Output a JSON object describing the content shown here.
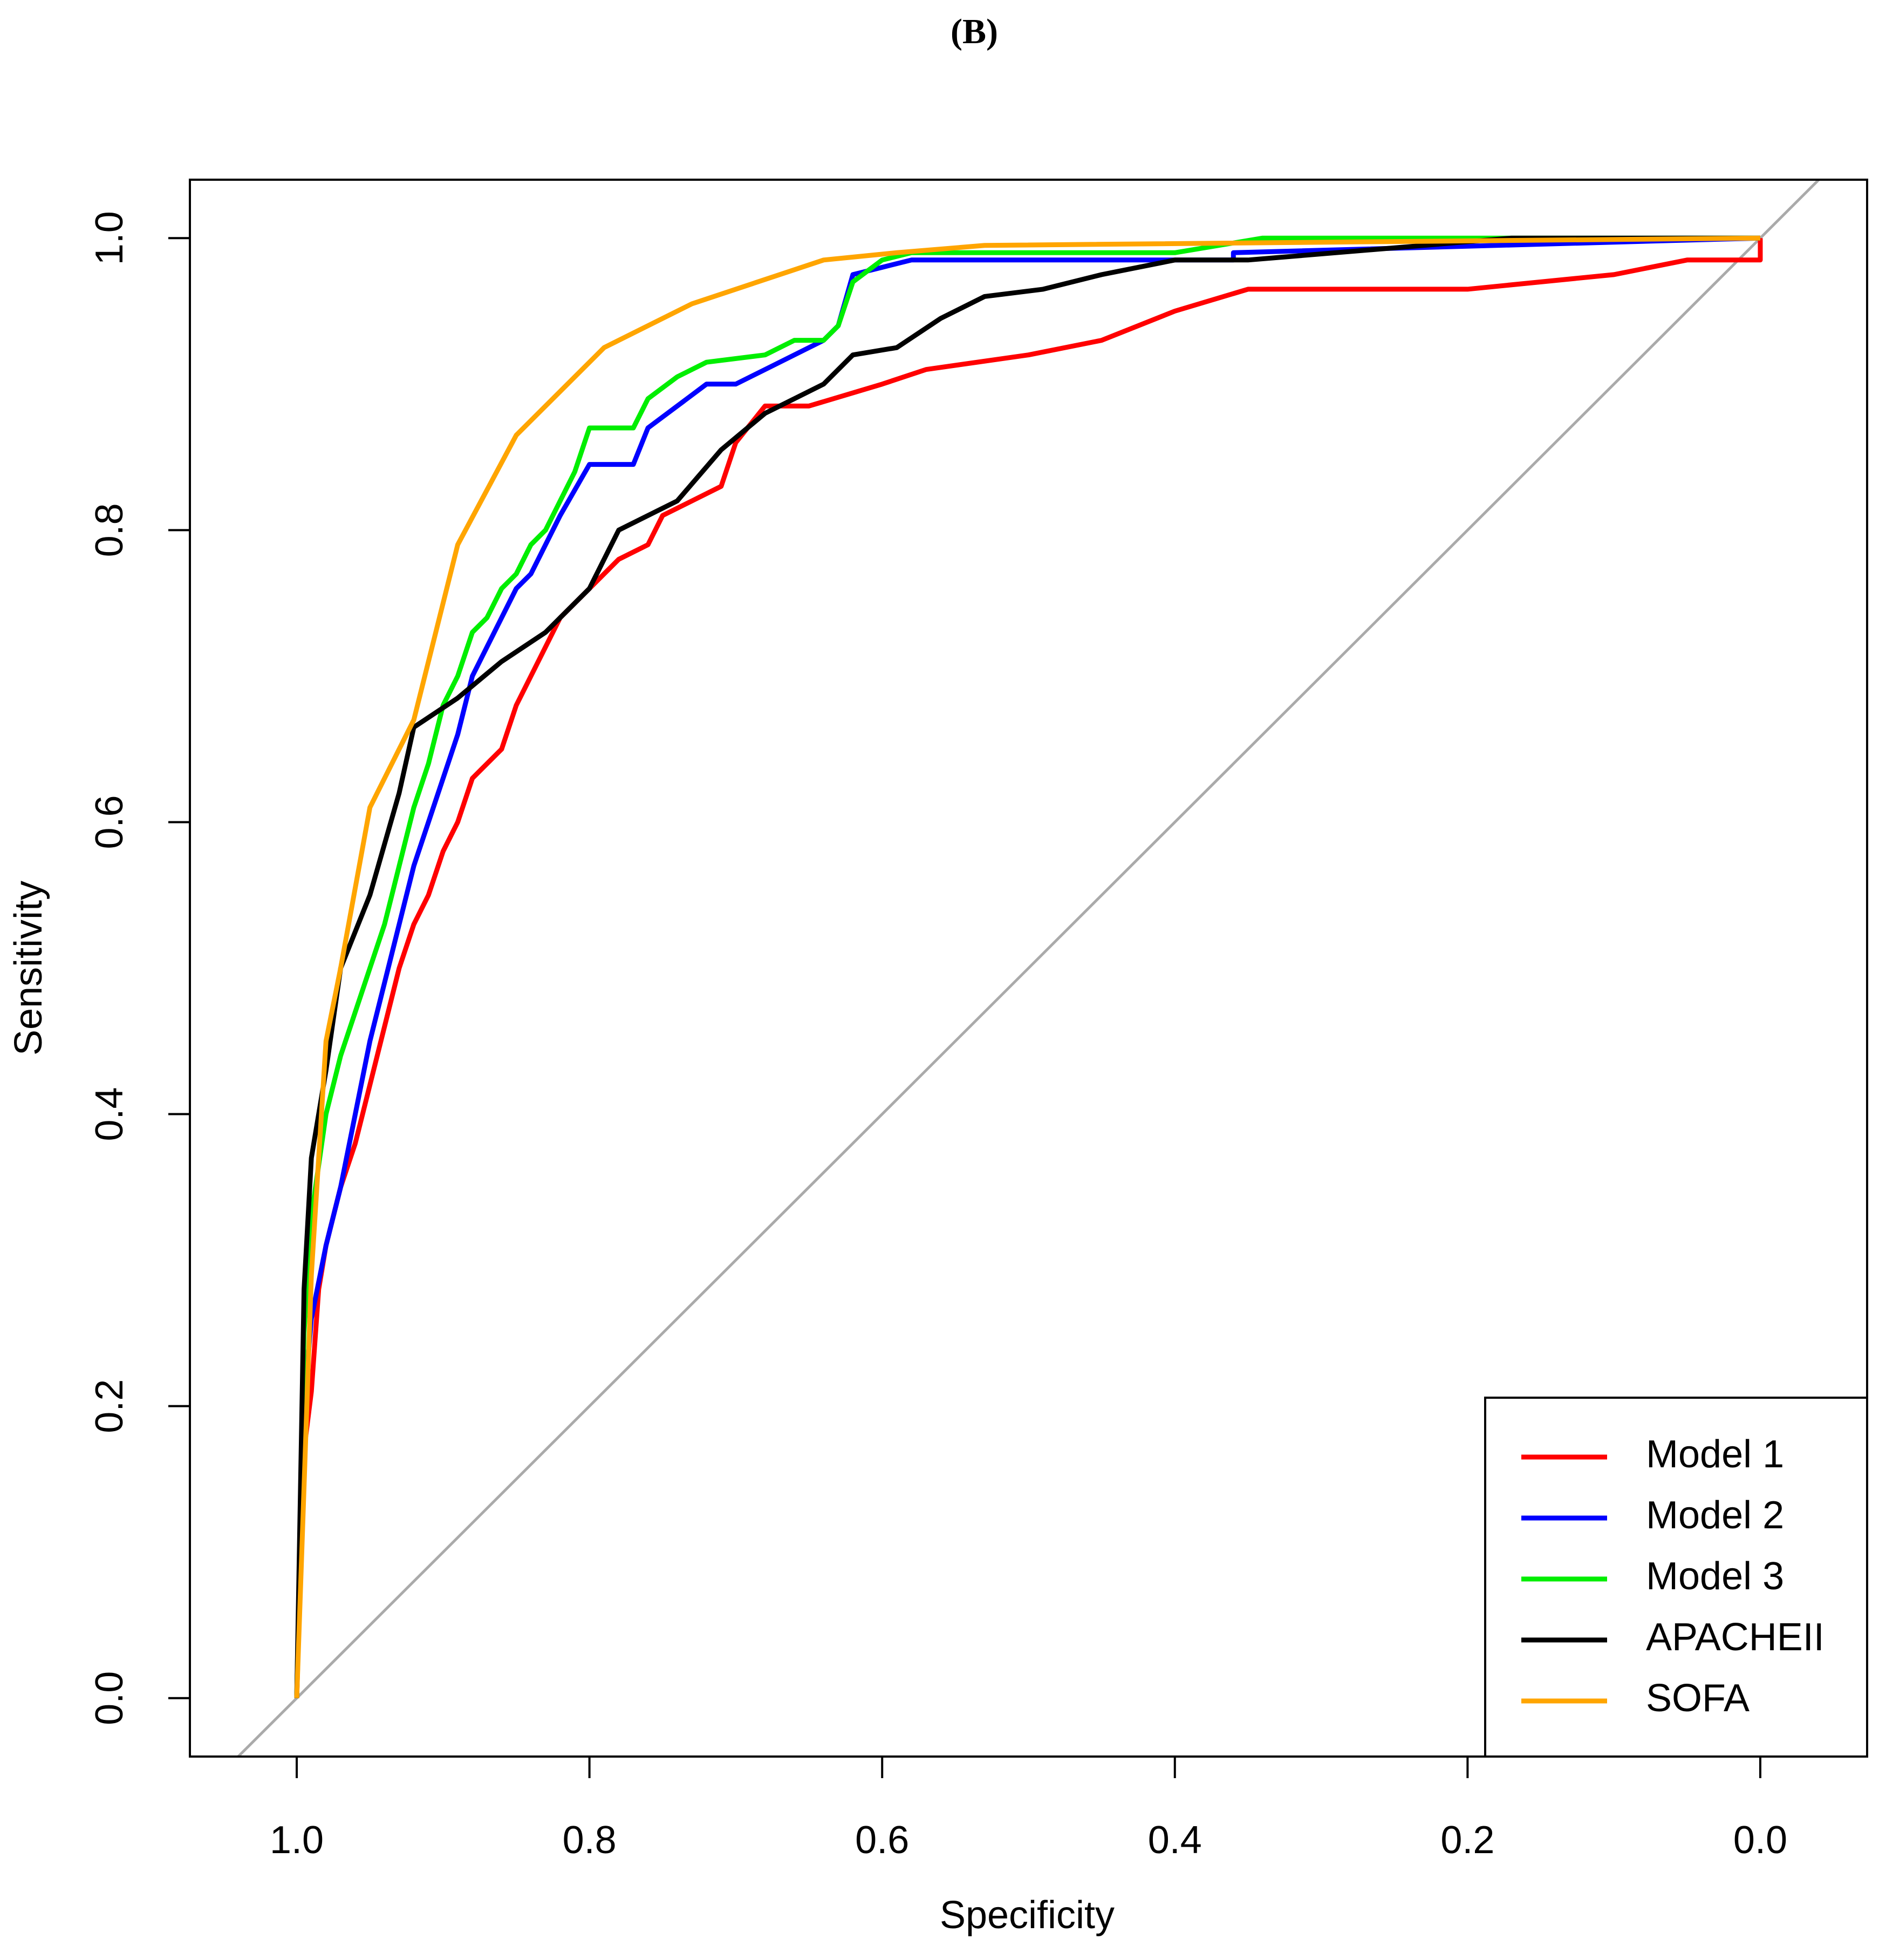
{
  "chart_data": {
    "type": "line",
    "title": "(B)",
    "x_label": "Specificity",
    "y_label": "Sensitivity",
    "xlim": [
      1.073,
      -0.073
    ],
    "ylim": [
      -0.04,
      1.04
    ],
    "xticks": [
      {
        "value": 1,
        "label": "1.0"
      },
      0.8,
      0.6,
      0.4,
      0.2,
      {
        "value": 0,
        "label": "0.0"
      }
    ],
    "yticks": [
      {
        "value": 0,
        "label": "0.0"
      },
      0.2,
      0.4,
      0.6,
      0.8,
      {
        "value": 1,
        "label": "1.0"
      }
    ],
    "legend": "bottom-right",
    "series": [
      {
        "name": "Model 1",
        "color": "#ff0000",
        "x": [
          1,
          0.995,
          0.99,
          0.985,
          0.98,
          0.97,
          0.96,
          0.95,
          0.94,
          0.93,
          0.92,
          0.91,
          0.9,
          0.89,
          0.88,
          0.86,
          0.85,
          0.84,
          0.82,
          0.8,
          0.78,
          0.76,
          0.75,
          0.73,
          0.71,
          0.7,
          0.68,
          0.65,
          0.6,
          0.57,
          0.5,
          0.45,
          0.4,
          0.35,
          0.2,
          0.1,
          0.05,
          0.0,
          0.0
        ],
        "values": [
          0,
          0.17,
          0.21,
          0.28,
          0.31,
          0.35,
          0.38,
          0.42,
          0.46,
          0.5,
          0.53,
          0.55,
          0.58,
          0.6,
          0.63,
          0.65,
          0.68,
          0.7,
          0.74,
          0.76,
          0.78,
          0.79,
          0.81,
          0.82,
          0.83,
          0.86,
          0.885,
          0.885,
          0.9,
          0.91,
          0.92,
          0.93,
          0.95,
          0.965,
          0.965,
          0.975,
          0.985,
          0.985,
          1
        ]
      },
      {
        "name": "Model 2",
        "color": "#0000ff",
        "x": [
          1,
          0.995,
          0.99,
          0.98,
          0.97,
          0.96,
          0.95,
          0.94,
          0.93,
          0.92,
          0.91,
          0.9,
          0.89,
          0.88,
          0.87,
          0.86,
          0.85,
          0.84,
          0.83,
          0.82,
          0.8,
          0.77,
          0.76,
          0.74,
          0.72,
          0.7,
          0.68,
          0.65,
          0.64,
          0.63,
          0.62,
          0.6,
          0.58,
          0.36,
          0.36,
          0
        ],
        "values": [
          0,
          0.2,
          0.26,
          0.31,
          0.35,
          0.4,
          0.45,
          0.49,
          0.53,
          0.57,
          0.6,
          0.63,
          0.66,
          0.7,
          0.72,
          0.74,
          0.76,
          0.77,
          0.79,
          0.81,
          0.845,
          0.845,
          0.87,
          0.885,
          0.9,
          0.9,
          0.91,
          0.925,
          0.93,
          0.94,
          0.975,
          0.98,
          0.985,
          0.985,
          0.99,
          1
        ]
      },
      {
        "name": "Model 3",
        "color": "#00ee00",
        "x": [
          1,
          0.995,
          0.99,
          0.98,
          0.97,
          0.96,
          0.95,
          0.94,
          0.93,
          0.92,
          0.91,
          0.9,
          0.89,
          0.88,
          0.87,
          0.86,
          0.85,
          0.84,
          0.83,
          0.82,
          0.81,
          0.8,
          0.77,
          0.76,
          0.74,
          0.72,
          0.68,
          0.66,
          0.64,
          0.63,
          0.62,
          0.6,
          0.58,
          0.4,
          0.34,
          0
        ],
        "values": [
          0,
          0.25,
          0.33,
          0.4,
          0.44,
          0.47,
          0.5,
          0.53,
          0.57,
          0.61,
          0.64,
          0.68,
          0.7,
          0.73,
          0.74,
          0.76,
          0.77,
          0.79,
          0.8,
          0.82,
          0.84,
          0.87,
          0.87,
          0.89,
          0.905,
          0.915,
          0.92,
          0.93,
          0.93,
          0.94,
          0.97,
          0.985,
          0.99,
          0.99,
          1,
          1
        ]
      },
      {
        "name": "APACHEII",
        "color": "#000000",
        "x": [
          1,
          0.995,
          0.99,
          0.98,
          0.97,
          0.95,
          0.93,
          0.92,
          0.89,
          0.86,
          0.83,
          0.8,
          0.78,
          0.74,
          0.71,
          0.68,
          0.64,
          0.62,
          0.59,
          0.56,
          0.53,
          0.49,
          0.45,
          0.4,
          0.35,
          0.17,
          0
        ],
        "values": [
          0,
          0.28,
          0.37,
          0.43,
          0.5,
          0.55,
          0.62,
          0.665,
          0.685,
          0.71,
          0.73,
          0.76,
          0.8,
          0.82,
          0.855,
          0.88,
          0.9,
          0.92,
          0.925,
          0.945,
          0.96,
          0.965,
          0.975,
          0.985,
          0.985,
          1,
          1
        ]
      },
      {
        "name": "SOFA",
        "color": "#ffa500",
        "x": [
          1,
          0.99,
          0.98,
          0.97,
          0.95,
          0.92,
          0.89,
          0.85,
          0.79,
          0.73,
          0.64,
          0.59,
          0.53,
          0
        ],
        "values": [
          0,
          0.29,
          0.45,
          0.5,
          0.61,
          0.67,
          0.79,
          0.865,
          0.925,
          0.955,
          0.985,
          0.99,
          0.995,
          1
        ]
      }
    ]
  }
}
